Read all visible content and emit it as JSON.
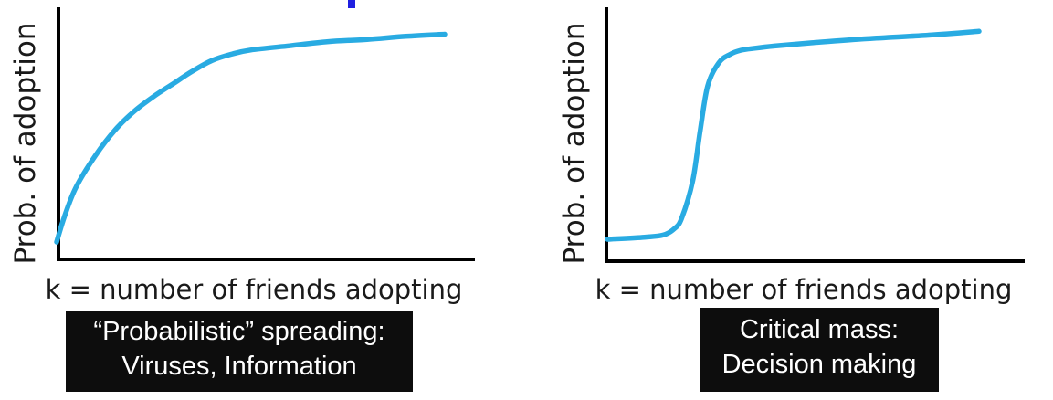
{
  "colors": {
    "curve": "#29abe2",
    "axis": "#000000",
    "accent_top": "#1f1fe0",
    "caption_bg": "#0d0d0d",
    "caption_text": "#ffffff"
  },
  "chart_data": [
    {
      "type": "line",
      "xlabel": "k = number of friends adopting",
      "ylabel": "Prob. of adoption",
      "xlim": [
        0,
        1
      ],
      "ylim": [
        0,
        1
      ],
      "grid": false,
      "series": [
        {
          "x": [
            0,
            0.02,
            0.05,
            0.1,
            0.15,
            0.2,
            0.25,
            0.3,
            0.35,
            0.4,
            0.45,
            0.5,
            0.6,
            0.7,
            0.8,
            0.9,
            1.0
          ],
          "y": [
            0,
            0.12,
            0.26,
            0.41,
            0.53,
            0.62,
            0.69,
            0.75,
            0.81,
            0.86,
            0.89,
            0.91,
            0.93,
            0.95,
            0.96,
            0.975,
            0.985
          ]
        }
      ]
    },
    {
      "type": "line",
      "xlabel": "k = number of friends adopting",
      "ylabel": "Prob. of adoption",
      "xlim": [
        0,
        1
      ],
      "ylim": [
        0,
        1
      ],
      "grid": false,
      "series": [
        {
          "x": [
            0,
            0.1,
            0.15,
            0.18,
            0.2,
            0.23,
            0.25,
            0.27,
            0.3,
            0.33,
            0.36,
            0.4,
            0.45,
            0.55,
            0.7,
            0.85,
            1.0
          ],
          "y": [
            0,
            0.01,
            0.02,
            0.05,
            0.1,
            0.28,
            0.52,
            0.73,
            0.84,
            0.88,
            0.9,
            0.91,
            0.92,
            0.935,
            0.955,
            0.97,
            0.99
          ]
        }
      ]
    }
  ],
  "captions": [
    {
      "line1": "“Probabilistic” spreading:",
      "line2": "Viruses, Information"
    },
    {
      "line1": "Critical mass:",
      "line2": "Decision making"
    }
  ]
}
